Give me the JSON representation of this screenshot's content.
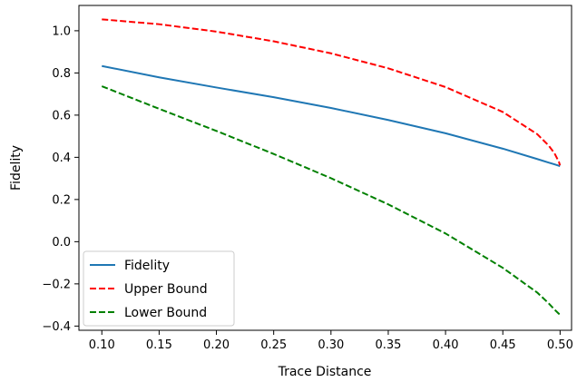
{
  "chart_data": {
    "type": "line",
    "xlabel": "Trace Distance",
    "ylabel": "Fidelity",
    "xlim": [
      0.08,
      0.51
    ],
    "ylim": [
      -0.42,
      1.12
    ],
    "x_ticks": [
      0.1,
      0.15,
      0.2,
      0.25,
      0.3,
      0.35,
      0.4,
      0.45,
      0.5
    ],
    "x_tick_labels": [
      "0.10",
      "0.15",
      "0.20",
      "0.25",
      "0.30",
      "0.35",
      "0.40",
      "0.45",
      "0.50"
    ],
    "y_ticks": [
      -0.4,
      -0.2,
      0.0,
      0.2,
      0.4,
      0.6,
      0.8,
      1.0
    ],
    "y_tick_labels": [
      "−0.4",
      "−0.2",
      "0.0",
      "0.2",
      "0.4",
      "0.6",
      "0.8",
      "1.0"
    ],
    "grid": false,
    "legend_position": "lower-left",
    "x": [
      0.1,
      0.15,
      0.2,
      0.25,
      0.3,
      0.35,
      0.4,
      0.45,
      0.48,
      0.49,
      0.495,
      0.499,
      0.4999
    ],
    "series": [
      {
        "name": "Fidelity",
        "color": "#1f77b4",
        "style": "solid",
        "values": [
          0.833,
          0.779,
          0.731,
          0.685,
          0.634,
          0.577,
          0.514,
          0.441,
          0.392,
          0.375,
          0.367,
          0.36,
          0.358
        ]
      },
      {
        "name": "Upper Bound",
        "color": "#ff0000",
        "style": "dashed",
        "values": [
          1.054,
          1.031,
          0.996,
          0.95,
          0.893,
          0.822,
          0.733,
          0.615,
          0.51,
          0.456,
          0.42,
          0.378,
          0.362
        ]
      },
      {
        "name": "Lower Bound",
        "color": "#008000",
        "style": "dashed",
        "values": [
          0.737,
          0.63,
          0.525,
          0.416,
          0.301,
          0.177,
          0.039,
          -0.124,
          -0.241,
          -0.292,
          -0.321,
          -0.342,
          -0.345
        ]
      }
    ]
  }
}
